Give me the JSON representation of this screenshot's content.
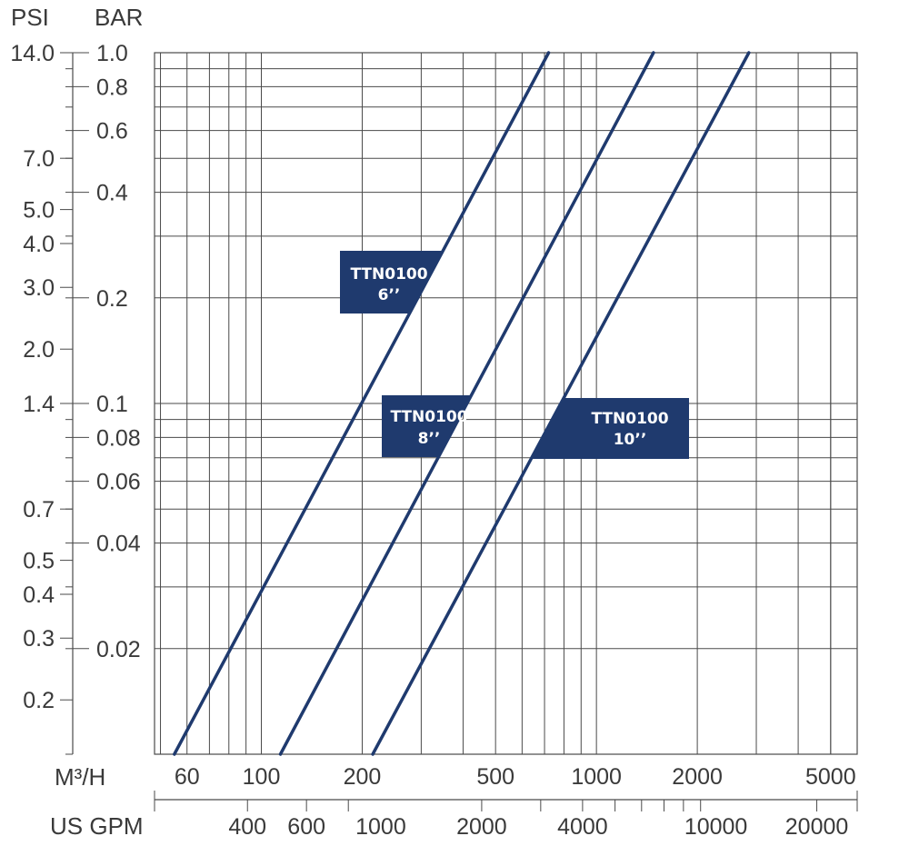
{
  "units": {
    "psi": "PSI",
    "bar": "BAR",
    "m3h": "M³/H",
    "gpm": "US GPM"
  },
  "colors": {
    "grid": "#4a4a4a",
    "curve": "#1f3a6e",
    "label_bg": "#1f3a6e",
    "text": "#3a3a3a"
  },
  "chart_data": {
    "type": "line",
    "x_scale": "log",
    "y_scale": "log",
    "xlim_m3h": [
      48,
      6000
    ],
    "ylim_bar": [
      0.01,
      1.0
    ],
    "grid": true,
    "psi_ticks": [
      {
        "label": "14.0",
        "value": 14.0
      },
      {
        "label": "7.0",
        "value": 7.0
      },
      {
        "label": "5.0",
        "value": 5.0
      },
      {
        "label": "4.0",
        "value": 4.0
      },
      {
        "label": "3.0",
        "value": 3.0
      },
      {
        "label": "2.0",
        "value": 2.0
      },
      {
        "label": "1.4",
        "value": 1.4
      },
      {
        "label": "0.7",
        "value": 0.7
      },
      {
        "label": "0.5",
        "value": 0.5
      },
      {
        "label": "0.4",
        "value": 0.4
      },
      {
        "label": "0.3",
        "value": 0.3
      },
      {
        "label": "0.2",
        "value": 0.2
      }
    ],
    "bar_ticks": [
      {
        "label": "1.0",
        "value": 1.0
      },
      {
        "label": "0.8",
        "value": 0.8
      },
      {
        "label": "0.6",
        "value": 0.6
      },
      {
        "label": "0.4",
        "value": 0.4
      },
      {
        "label": "0.2",
        "value": 0.2
      },
      {
        "label": "0.1",
        "value": 0.1
      },
      {
        "label": "0.08",
        "value": 0.08
      },
      {
        "label": "0.06",
        "value": 0.06
      },
      {
        "label": "0.04",
        "value": 0.04
      },
      {
        "label": "0.02",
        "value": 0.02
      }
    ],
    "m3h_ticks": [
      {
        "label": "60",
        "value": 60
      },
      {
        "label": "100",
        "value": 100
      },
      {
        "label": "200",
        "value": 200
      },
      {
        "label": "500",
        "value": 500
      },
      {
        "label": "1000",
        "value": 1000
      },
      {
        "label": "2000",
        "value": 2000
      },
      {
        "label": "5000",
        "value": 5000
      }
    ],
    "gpm_ticks": [
      {
        "label": "400",
        "value": 400
      },
      {
        "label": "600",
        "value": 600
      },
      {
        "label": "1000",
        "value": 1000
      },
      {
        "label": "2000",
        "value": 2000
      },
      {
        "label": "4000",
        "value": 4000
      },
      {
        "label": "10000",
        "value": 10000
      },
      {
        "label": "20000",
        "value": 20000
      }
    ],
    "series": [
      {
        "name": "TTN0100 6’’",
        "line1": "TTN0100",
        "line2": "6’’",
        "points": [
          [
            55,
            0.01
          ],
          [
            720,
            1.0
          ]
        ]
      },
      {
        "name": "TTN0100 8’’",
        "line1": "TTN0100",
        "line2": "8’’",
        "points": [
          [
            114,
            0.01
          ],
          [
            1480,
            1.0
          ]
        ]
      },
      {
        "name": "TTN0100 10’’",
        "line1": "TTN0100",
        "line2": "10’’",
        "points": [
          [
            215,
            0.01
          ],
          [
            2850,
            1.0
          ]
        ]
      }
    ]
  }
}
